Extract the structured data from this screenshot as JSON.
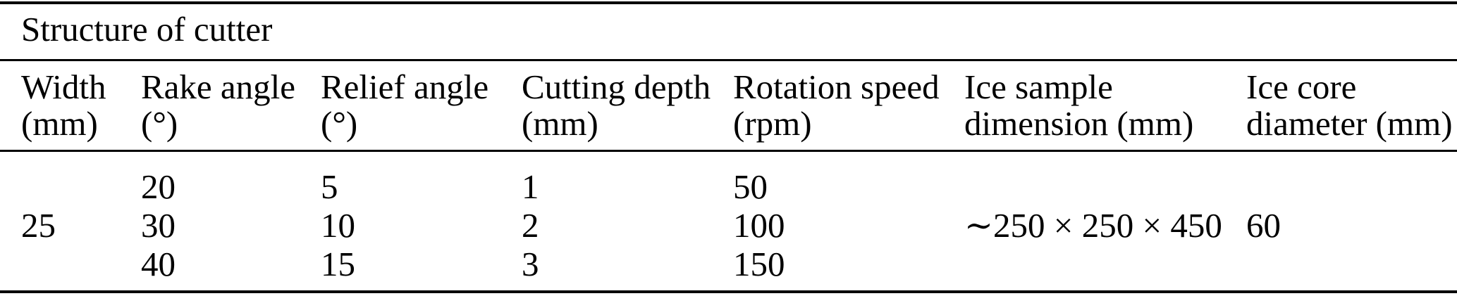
{
  "colors": {
    "background": "#ffffff",
    "text": "#000000",
    "rule": "#000000"
  },
  "table": {
    "title": "Structure of cutter",
    "columns": [
      {
        "line1": "Width",
        "line2": "(mm)"
      },
      {
        "line1": "Rake angle",
        "line2": "(°)"
      },
      {
        "line1": "Relief angle",
        "line2": "(°)"
      },
      {
        "line1": "Cutting depth",
        "line2": "(mm)"
      },
      {
        "line1": "Rotation speed",
        "line2": "(rpm)"
      },
      {
        "line1": "Ice sample",
        "line2": "dimension (mm)"
      },
      {
        "line1": "Ice core",
        "line2": "diameter (mm)"
      }
    ],
    "body": {
      "width": "25",
      "rake_angle": [
        "20",
        "30",
        "40"
      ],
      "relief_angle": [
        "5",
        "10",
        "15"
      ],
      "cutting_depth": [
        "1",
        "2",
        "3"
      ],
      "rotation_speed": [
        "50",
        "100",
        "150"
      ],
      "ice_sample_dimension": "∼250 × 250 × 450",
      "ice_core_diameter": "60"
    }
  }
}
